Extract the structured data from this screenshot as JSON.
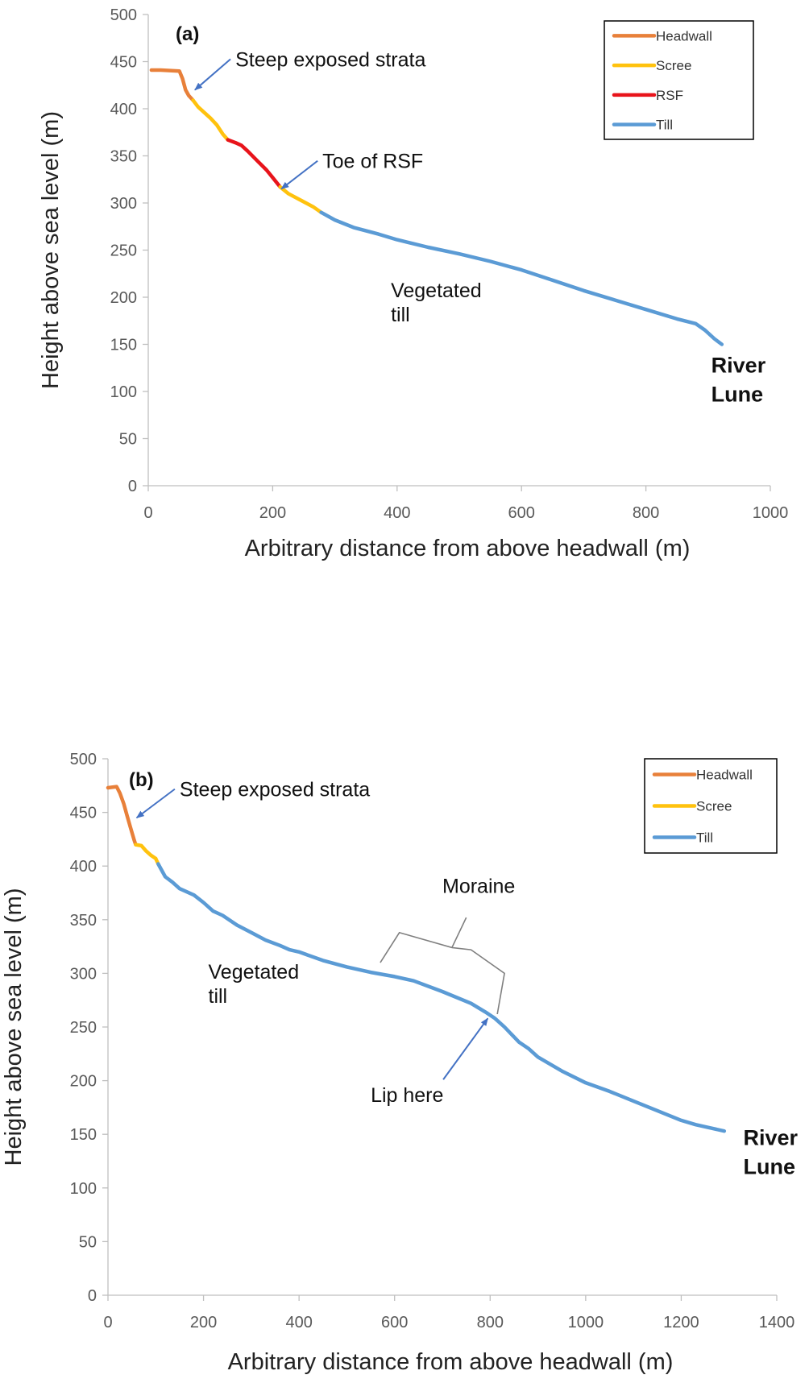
{
  "colors": {
    "headwall": "#E8803A",
    "scree": "#FFC20E",
    "rsf": "#E8141B",
    "till": "#5B9BD5",
    "arrow": "#4472C4",
    "axis": "#BFBFBF",
    "bracket": "#7F7F7F"
  },
  "chart_data": [
    {
      "type": "line",
      "panel_label": "(a)",
      "xlabel": "Arbitrary distance from above headwall (m)",
      "ylabel": "Height above sea level (m)",
      "xlim": [
        0,
        1000
      ],
      "ylim": [
        0,
        500
      ],
      "xticks": [
        "0",
        "200",
        "400",
        "600",
        "800",
        "1000"
      ],
      "yticks": [
        "0",
        "50",
        "100",
        "150",
        "200",
        "250",
        "300",
        "350",
        "400",
        "450",
        "500"
      ],
      "legend_position": "top-right",
      "series": [
        {
          "name": "Headwall",
          "color_key": "headwall",
          "x": [
            5,
            20,
            50,
            55,
            60,
            65,
            72
          ],
          "y": [
            441,
            441,
            440,
            432,
            420,
            414,
            409
          ]
        },
        {
          "name": "Scree",
          "color_key": "scree",
          "x": [
            72,
            80,
            90,
            100,
            110,
            120,
            128
          ],
          "y": [
            409,
            402,
            396,
            390,
            383,
            373,
            367
          ]
        },
        {
          "name": "RSF",
          "color_key": "rsf",
          "x": [
            128,
            140,
            150,
            160,
            175,
            190,
            200,
            212
          ],
          "y": [
            367,
            364,
            361,
            355,
            345,
            335,
            327,
            317
          ]
        },
        {
          "name": "Scree",
          "color_key": "scree",
          "x": [
            212,
            225,
            245,
            265,
            278
          ],
          "y": [
            317,
            310,
            303,
            296,
            290
          ]
        },
        {
          "name": "Till",
          "color_key": "till",
          "x": [
            278,
            300,
            330,
            370,
            400,
            450,
            500,
            550,
            600,
            650,
            700,
            750,
            800,
            850,
            880,
            895,
            910,
            922
          ],
          "y": [
            290,
            282,
            274,
            267,
            261,
            253,
            246,
            238,
            229,
            218,
            207,
            197,
            187,
            177,
            172,
            165,
            156,
            150
          ]
        }
      ],
      "legend": [
        "Headwall",
        "Scree",
        "RSF",
        "Till"
      ],
      "annotations": [
        {
          "text": "Steep exposed strata",
          "x": 140,
          "y": 445,
          "arrow_to": [
            75,
            420
          ]
        },
        {
          "text": "Toe of RSF",
          "x": 280,
          "y": 337,
          "arrow_to": [
            214,
            315
          ]
        },
        {
          "lines": [
            "Vegetated",
            "till"
          ],
          "x": 390,
          "y": 200
        },
        {
          "lines": [
            "River",
            "Lune"
          ],
          "x": 905,
          "y": 120,
          "bold": true
        }
      ]
    },
    {
      "type": "line",
      "panel_label": "(b)",
      "xlabel": "Arbitrary distance from above headwall (m)",
      "ylabel": "Height above sea level (m)",
      "xlim": [
        0,
        1400
      ],
      "ylim": [
        0,
        500
      ],
      "xticks": [
        "0",
        "200",
        "400",
        "600",
        "800",
        "1000",
        "1200",
        "1400"
      ],
      "yticks": [
        "0",
        "50",
        "100",
        "150",
        "200",
        "250",
        "300",
        "350",
        "400",
        "450",
        "500"
      ],
      "legend_position": "top-right",
      "series": [
        {
          "name": "Headwall",
          "color_key": "headwall",
          "x": [
            0,
            18,
            25,
            33,
            40,
            47,
            55,
            58
          ],
          "y": [
            473,
            474,
            468,
            458,
            447,
            436,
            424,
            420
          ]
        },
        {
          "name": "Scree",
          "color_key": "scree",
          "x": [
            58,
            70,
            80,
            90,
            100,
            105
          ],
          "y": [
            420,
            419,
            414,
            410,
            407,
            402
          ]
        },
        {
          "name": "Till",
          "color_key": "till",
          "x": [
            105,
            120,
            135,
            150,
            180,
            200,
            220,
            240,
            270,
            300,
            330,
            360,
            380,
            400,
            450,
            500,
            550,
            600,
            640,
            700,
            760,
            790,
            810,
            830,
            860,
            880,
            900,
            950,
            1000,
            1050,
            1100,
            1150,
            1200,
            1230,
            1260,
            1290
          ],
          "y": [
            402,
            390,
            385,
            379,
            373,
            366,
            358,
            354,
            345,
            338,
            331,
            326,
            322,
            320,
            312,
            306,
            301,
            297,
            293,
            283,
            272,
            264,
            258,
            250,
            236,
            230,
            222,
            209,
            198,
            190,
            181,
            172,
            163,
            159,
            156,
            153
          ]
        }
      ],
      "legend": [
        "Headwall",
        "Scree",
        "Till"
      ],
      "annotations": [
        {
          "text": "Steep exposed strata",
          "x": 150,
          "y": 465,
          "arrow_to": [
            60,
            445
          ]
        },
        {
          "text": "Moraine",
          "x": 700,
          "y": 375
        },
        {
          "lines": [
            "Vegetated",
            "till"
          ],
          "x": 210,
          "y": 295
        },
        {
          "text": "Lip here",
          "x": 550,
          "y": 180,
          "arrow_to": [
            795,
            258
          ]
        },
        {
          "lines": [
            "River",
            "Lune"
          ],
          "x": 1330,
          "y": 140,
          "bold": true
        }
      ]
    }
  ]
}
